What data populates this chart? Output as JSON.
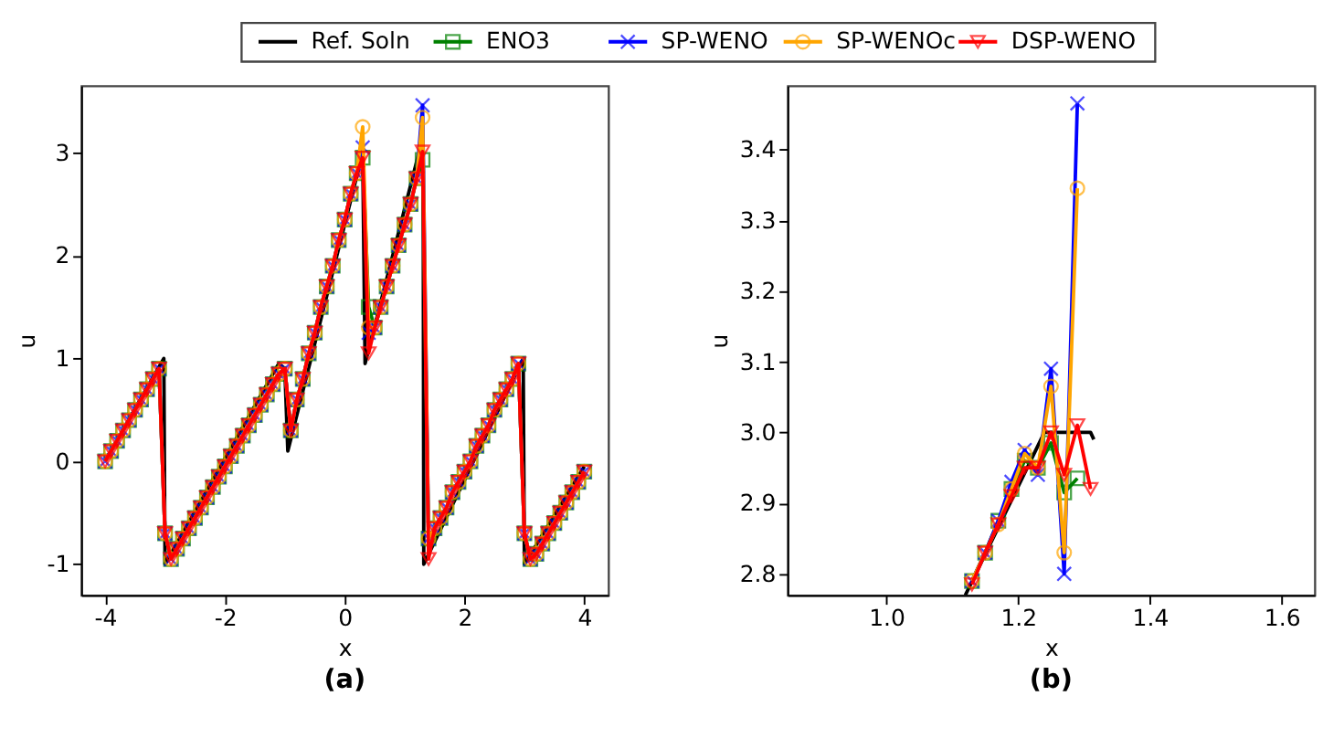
{
  "chart_data": [
    {
      "type": "line",
      "title": "(a)",
      "xlabel": "x",
      "ylabel": "u",
      "legend": "top",
      "grid": false,
      "xlim": [
        -4.4,
        4.4
      ],
      "ylim": [
        -1.3,
        3.65
      ],
      "xticks": [
        -4,
        -2,
        0,
        2,
        4
      ],
      "yticks": [
        -1,
        0,
        1,
        2,
        3
      ],
      "x": [
        -4.0,
        -3.9,
        -3.8,
        -3.7,
        -3.6,
        -3.5,
        -3.4,
        -3.3,
        -3.2,
        -3.1,
        -3.0,
        -2.9,
        -2.8,
        -2.7,
        -2.6,
        -2.5,
        -2.4,
        -2.3,
        -2.2,
        -2.1,
        -2.0,
        -1.9,
        -1.8,
        -1.7,
        -1.6,
        -1.5,
        -1.4,
        -1.3,
        -1.2,
        -1.1,
        -1.0,
        -0.9,
        -0.8,
        -0.7,
        -0.6,
        -0.5,
        -0.4,
        -0.3,
        -0.2,
        -0.1,
        0.0,
        0.1,
        0.2,
        0.3,
        0.4,
        0.5,
        0.6,
        0.7,
        0.8,
        0.9,
        1.0,
        1.1,
        1.2,
        1.3,
        1.4,
        1.5,
        1.6,
        1.7,
        1.8,
        1.9,
        2.0,
        2.1,
        2.2,
        2.3,
        2.4,
        2.5,
        2.6,
        2.7,
        2.8,
        2.9,
        3.0,
        3.1,
        3.2,
        3.3,
        3.4,
        3.5,
        3.6,
        3.7,
        3.8,
        3.9,
        4.0
      ],
      "series": [
        {
          "name": "Ref. Soln",
          "color": "#000000",
          "marker": "none",
          "x": [
            -4.0,
            -3.02,
            -3.0,
            -1.1,
            -1.0,
            -0.95,
            0.3,
            0.34,
            1.24,
            1.31,
            1.32,
            2.98,
            3.0,
            4.0
          ],
          "values": [
            0.0,
            1.0,
            -1.0,
            0.95,
            0.9,
            0.1,
            3.0,
            0.95,
            3.0,
            3.0,
            -1.0,
            1.0,
            -1.0,
            -0.05
          ]
        },
        {
          "name": "ENO3",
          "color": "#008000",
          "marker": "square",
          "values": [
            0,
            0.1,
            0.2,
            0.3,
            0.4,
            0.5,
            0.6,
            0.7,
            0.8,
            0.9,
            -0.7,
            -0.95,
            -0.85,
            -0.75,
            -0.65,
            -0.55,
            -0.45,
            -0.35,
            -0.25,
            -0.15,
            -0.05,
            0.05,
            0.15,
            0.25,
            0.35,
            0.45,
            0.55,
            0.65,
            0.75,
            0.85,
            0.9,
            0.3,
            0.6,
            0.8,
            1.05,
            1.25,
            1.5,
            1.7,
            1.9,
            2.15,
            2.35,
            2.6,
            2.8,
            2.95,
            1.5,
            1.3,
            1.5,
            1.7,
            1.9,
            2.1,
            2.3,
            2.5,
            2.75,
            2.93,
            -0.75,
            -0.65,
            -0.55,
            -0.45,
            -0.3,
            -0.2,
            -0.1,
            0.0,
            0.15,
            0.25,
            0.35,
            0.5,
            0.6,
            0.7,
            0.8,
            0.95,
            -0.7,
            -0.95,
            -0.9,
            -0.8,
            -0.7,
            -0.6,
            -0.5,
            -0.4,
            -0.3,
            -0.2,
            -0.1
          ]
        },
        {
          "name": "SP-WENO",
          "color": "#0000ff",
          "marker": "cross",
          "values": [
            0,
            0.1,
            0.2,
            0.3,
            0.4,
            0.5,
            0.6,
            0.7,
            0.8,
            0.9,
            -0.7,
            -0.95,
            -0.85,
            -0.75,
            -0.65,
            -0.55,
            -0.45,
            -0.35,
            -0.25,
            -0.15,
            -0.05,
            0.05,
            0.15,
            0.25,
            0.35,
            0.45,
            0.55,
            0.65,
            0.75,
            0.85,
            0.9,
            0.3,
            0.6,
            0.8,
            1.05,
            1.25,
            1.5,
            1.7,
            1.9,
            2.15,
            2.35,
            2.6,
            2.8,
            3.05,
            1.25,
            1.3,
            1.5,
            1.7,
            1.9,
            2.1,
            2.3,
            2.5,
            2.75,
            3.46,
            -0.75,
            -0.65,
            -0.55,
            -0.45,
            -0.3,
            -0.2,
            -0.1,
            0.0,
            0.15,
            0.25,
            0.35,
            0.5,
            0.6,
            0.7,
            0.8,
            0.95,
            -0.7,
            -0.95,
            -0.9,
            -0.8,
            -0.7,
            -0.6,
            -0.5,
            -0.4,
            -0.3,
            -0.2,
            -0.1
          ]
        },
        {
          "name": "SP-WENOc",
          "color": "#ffa500",
          "marker": "circle",
          "values": [
            0,
            0.1,
            0.2,
            0.3,
            0.4,
            0.5,
            0.6,
            0.7,
            0.8,
            0.9,
            -0.7,
            -0.95,
            -0.85,
            -0.75,
            -0.65,
            -0.55,
            -0.45,
            -0.35,
            -0.25,
            -0.15,
            -0.05,
            0.05,
            0.15,
            0.25,
            0.35,
            0.45,
            0.55,
            0.65,
            0.75,
            0.85,
            0.9,
            0.3,
            0.6,
            0.8,
            1.05,
            1.25,
            1.5,
            1.7,
            1.9,
            2.15,
            2.35,
            2.6,
            2.8,
            3.25,
            1.3,
            1.3,
            1.5,
            1.7,
            1.9,
            2.1,
            2.3,
            2.5,
            2.75,
            3.34,
            -0.75,
            -0.65,
            -0.55,
            -0.45,
            -0.3,
            -0.2,
            -0.1,
            0.0,
            0.15,
            0.25,
            0.35,
            0.5,
            0.6,
            0.7,
            0.8,
            0.95,
            -0.7,
            -0.95,
            -0.9,
            -0.8,
            -0.7,
            -0.6,
            -0.5,
            -0.4,
            -0.3,
            -0.2,
            -0.1
          ]
        },
        {
          "name": "DSP-WENO",
          "color": "#ff0000",
          "marker": "triangle-down",
          "values": [
            0,
            0.1,
            0.2,
            0.3,
            0.4,
            0.5,
            0.6,
            0.7,
            0.8,
            0.9,
            -0.7,
            -0.95,
            -0.85,
            -0.75,
            -0.65,
            -0.55,
            -0.45,
            -0.35,
            -0.25,
            -0.15,
            -0.05,
            0.05,
            0.15,
            0.25,
            0.35,
            0.45,
            0.55,
            0.65,
            0.75,
            0.85,
            0.9,
            0.3,
            0.6,
            0.8,
            1.05,
            1.25,
            1.5,
            1.7,
            1.9,
            2.15,
            2.35,
            2.6,
            2.8,
            2.95,
            1.05,
            1.3,
            1.5,
            1.7,
            1.9,
            2.1,
            2.3,
            2.5,
            2.75,
            3.01,
            -0.95,
            -0.65,
            -0.55,
            -0.45,
            -0.3,
            -0.2,
            -0.1,
            0.0,
            0.15,
            0.25,
            0.35,
            0.5,
            0.6,
            0.7,
            0.8,
            0.95,
            -0.7,
            -0.95,
            -0.9,
            -0.8,
            -0.7,
            -0.6,
            -0.5,
            -0.4,
            -0.3,
            -0.2,
            -0.1
          ]
        }
      ]
    },
    {
      "type": "line",
      "title": "(b)",
      "xlabel": "x",
      "ylabel": "u",
      "grid": false,
      "xlim": [
        0.85,
        1.65
      ],
      "ylim": [
        2.77,
        3.49
      ],
      "xticks": [
        {
          "value": 1.0,
          "label": "1.0"
        },
        1.2,
        1.4,
        1.6
      ],
      "yticks": [
        2.8,
        2.9,
        {
          "value": 3.0,
          "label": "3.0"
        },
        3.1,
        3.2,
        3.3,
        3.4
      ],
      "x": [
        1.13,
        1.15,
        1.17,
        1.19,
        1.21,
        1.23,
        1.25,
        1.27,
        1.29,
        1.31
      ],
      "series": [
        {
          "name": "Ref. Soln",
          "color": "#000000",
          "marker": "none",
          "x": [
            1.12,
            1.24,
            1.31,
            1.315
          ],
          "values": [
            2.77,
            3.0,
            3.0,
            2.99
          ]
        },
        {
          "name": "ENO3",
          "color": "#008000",
          "marker": "square",
          "values": [
            2.79,
            2.83,
            2.875,
            2.92,
            2.96,
            2.95,
            2.985,
            2.915,
            2.935,
            null
          ]
        },
        {
          "name": "SP-WENO",
          "color": "#0000ff",
          "marker": "cross",
          "values": [
            2.79,
            2.83,
            2.875,
            2.93,
            2.975,
            2.94,
            3.09,
            2.8,
            3.465,
            null
          ]
        },
        {
          "name": "SP-WENOc",
          "color": "#ffa500",
          "marker": "circle",
          "values": [
            2.79,
            2.83,
            2.87,
            2.92,
            2.97,
            2.95,
            3.065,
            2.83,
            3.345,
            null
          ]
        },
        {
          "name": "DSP-WENO",
          "color": "#ff0000",
          "marker": "triangle-down",
          "values": [
            2.785,
            2.83,
            2.87,
            2.91,
            2.95,
            2.95,
            3.0,
            2.94,
            3.01,
            2.92
          ]
        }
      ]
    }
  ]
}
